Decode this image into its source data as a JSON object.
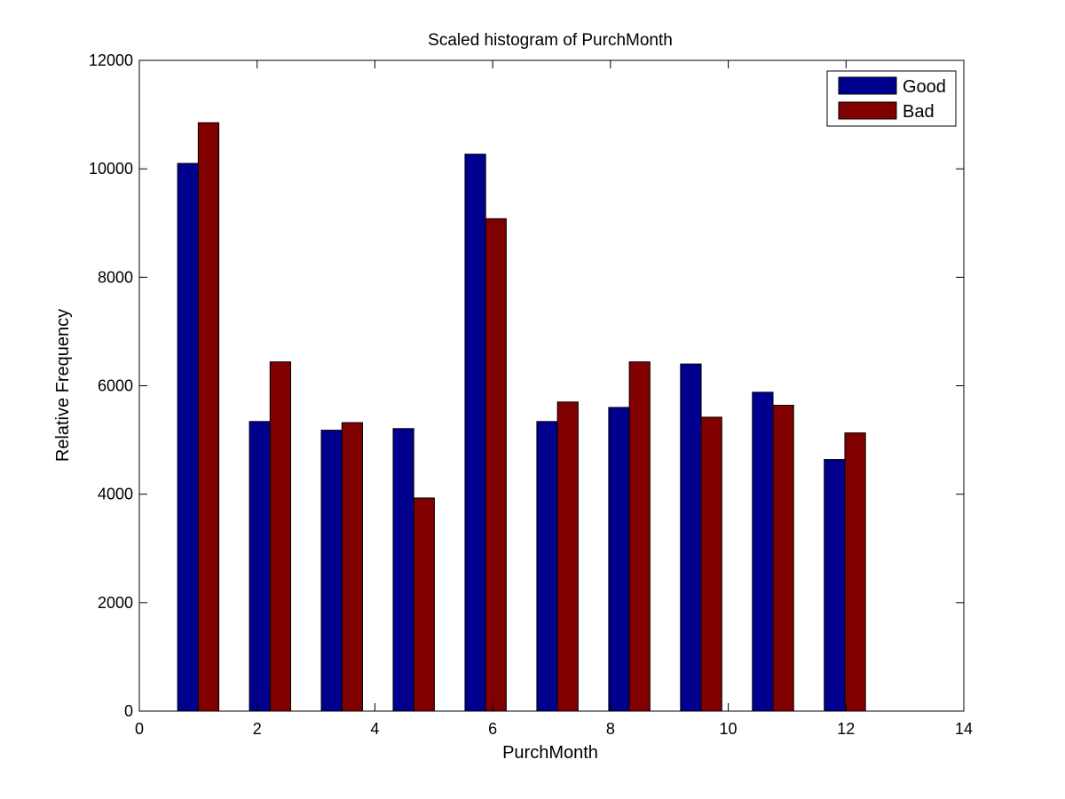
{
  "chart_data": {
    "type": "bar",
    "title": "Scaled histogram of PurchMonth",
    "xlabel": "PurchMonth",
    "ylabel": "Relative Frequency",
    "xlim": [
      0,
      14
    ],
    "ylim": [
      0,
      12000
    ],
    "xticks": [
      0,
      2,
      4,
      6,
      8,
      10,
      12,
      14
    ],
    "yticks": [
      0,
      2000,
      4000,
      6000,
      8000,
      10000,
      12000
    ],
    "grid": false,
    "legend_position": "top-right",
    "bar_width": 0.35,
    "series": [
      {
        "name": "Good",
        "color": "#00008f",
        "x": [
          0.825,
          2.045,
          3.265,
          4.485,
          5.705,
          6.925,
          8.145,
          9.365,
          10.585,
          11.805
        ],
        "values": [
          10100,
          5340,
          5180,
          5210,
          10270,
          5340,
          5600,
          6400,
          5880,
          4640
        ]
      },
      {
        "name": "Bad",
        "color": "#800000",
        "x": [
          1.175,
          2.395,
          3.615,
          4.835,
          6.055,
          7.275,
          8.495,
          9.715,
          10.935,
          12.155
        ],
        "values": [
          10850,
          6440,
          5320,
          3930,
          9080,
          5700,
          6440,
          5420,
          5640,
          5130
        ]
      }
    ]
  }
}
